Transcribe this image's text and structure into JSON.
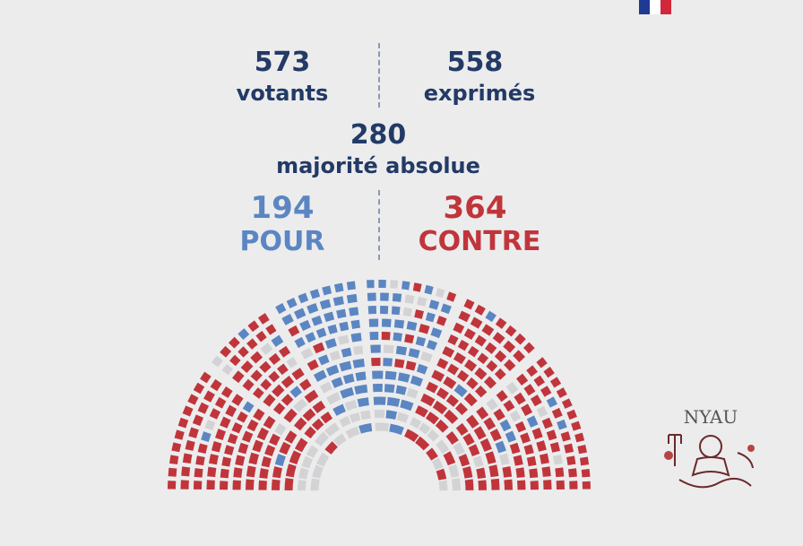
{
  "flag_colors": [
    "#1f3a93",
    "#ffffff",
    "#d0273a"
  ],
  "stats": {
    "votants": {
      "value": "573",
      "label": "votants"
    },
    "exprimes": {
      "value": "558",
      "label": "exprimés"
    },
    "majorite": {
      "value": "280",
      "label": "majorité absolue"
    }
  },
  "result": {
    "pour": {
      "value": "194",
      "label": "POUR",
      "color": "#5b86c2"
    },
    "contre": {
      "value": "364",
      "label": "CONTRE",
      "color": "#c0353b"
    }
  },
  "colors": {
    "text_dark": "#233a66",
    "abstention": "#d3d3d5",
    "background": "#ececed"
  },
  "chart_data": {
    "type": "hemicycle",
    "series": [
      {
        "name": "POUR",
        "values": [
          194
        ]
      },
      {
        "name": "CONTRE",
        "values": [
          364
        ]
      }
    ]
  },
  "watermark": {
    "text": "NYAU",
    "icon": "neptune-logo"
  }
}
